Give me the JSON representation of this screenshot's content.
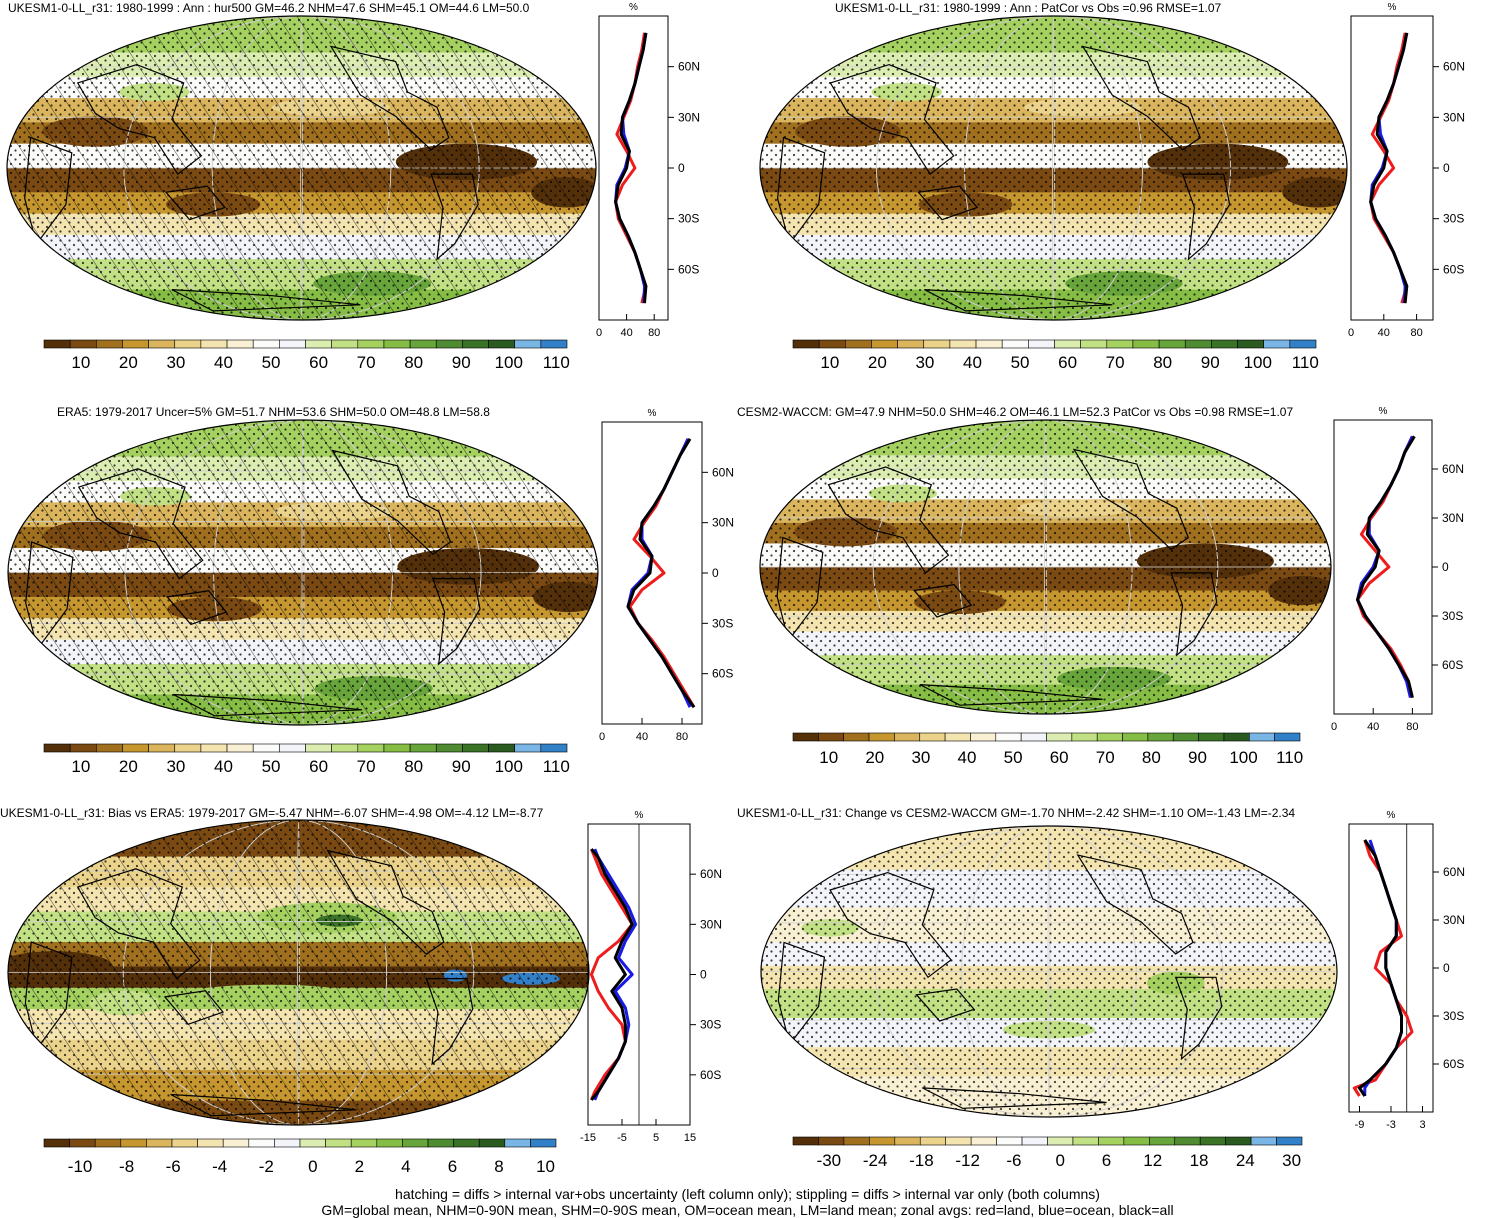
{
  "figure": {
    "footer_line1": "hatching = diffs > internal var+obs uncertainty (left column only); stippling = diffs > internal var only (both columns)",
    "footer_line2": "GM=global mean, NHM=0-90N mean, SHM=0-90S mean, OM=ocean mean, LM=land mean; zonal avgs: red=land, blue=ocean, black=all"
  },
  "colors": {
    "abs_scale": [
      "#54300a",
      "#7a4a12",
      "#a0701f",
      "#c6962f",
      "#dab55d",
      "#ebd38c",
      "#f4e5b0",
      "#f9f0d3",
      "#fbfbf9",
      "#f2f4f9",
      "#dcedb2",
      "#c2e084",
      "#a5d160",
      "#86bd45",
      "#68a53a",
      "#4f8b31",
      "#3a7226",
      "#2a5a1f",
      "#79b6e6",
      "#3180c8"
    ],
    "diff_scale": [
      "#54300a",
      "#7a4a12",
      "#a0701f",
      "#c6962f",
      "#dab55d",
      "#ebd38c",
      "#f4e5b0",
      "#f9f0d3",
      "#fbfbf9",
      "#f2f4f9",
      "#dcedb2",
      "#c2e084",
      "#a5d160",
      "#86bd45",
      "#68a53a",
      "#4f8b31",
      "#3a7226",
      "#2a5a1f",
      "#79b6e6",
      "#3180c8"
    ],
    "land": "#ee1c1c",
    "ocean": "#1a1ae6",
    "all": "#000000"
  },
  "chart_data": [
    {
      "type": "heatmap",
      "panel": "ukesm-mean",
      "title": "UKESM1-0-LL_r31: 1980-1999 : Ann : hur500 GM=46.2 NHM=47.6 SHM=45.1 OM=44.6 LM=50.0",
      "colorbar_ticks": [
        "10",
        "20",
        "30",
        "40",
        "50",
        "60",
        "70",
        "80",
        "90",
        "100",
        "110"
      ],
      "zonal": {
        "unit": "%",
        "xticks": [
          "0",
          "40",
          "80"
        ],
        "xlim": [
          0,
          100
        ],
        "yticks": [
          "60N",
          "30N",
          "0",
          "30S",
          "60S"
        ],
        "ylim": [
          -90,
          90
        ],
        "latitudes": [
          -80,
          -70,
          -60,
          -50,
          -40,
          -30,
          -20,
          -10,
          0,
          10,
          20,
          30,
          40,
          50,
          60,
          70,
          80
        ],
        "land": [
          62,
          68,
          60,
          52,
          40,
          28,
          24,
          34,
          52,
          40,
          26,
          36,
          46,
          52,
          56,
          62,
          66
        ],
        "ocean": [
          65,
          66,
          60,
          52,
          42,
          30,
          24,
          26,
          38,
          44,
          36,
          34,
          44,
          52,
          58,
          64,
          68
        ],
        "all": [
          66,
          68,
          60,
          52,
          42,
          30,
          24,
          28,
          40,
          44,
          32,
          34,
          44,
          52,
          58,
          64,
          68
        ]
      }
    },
    {
      "type": "heatmap",
      "panel": "ukesm-patcor",
      "title": "UKESM1-0-LL_r31: 1980-1999 : Ann : PatCor vs Obs =0.96 RMSE=1.07",
      "colorbar_ticks": [
        "10",
        "20",
        "30",
        "40",
        "50",
        "60",
        "70",
        "80",
        "90",
        "100",
        "110"
      ],
      "zonal": {
        "unit": "%",
        "xticks": [
          "0",
          "40",
          "80"
        ],
        "xlim": [
          0,
          100
        ],
        "yticks": [
          "60N",
          "30N",
          "0",
          "30S",
          "60S"
        ],
        "ylim": [
          -90,
          90
        ],
        "latitudes": [
          -80,
          -70,
          -60,
          -50,
          -40,
          -30,
          -20,
          -10,
          0,
          10,
          20,
          30,
          40,
          50,
          60,
          70,
          80
        ],
        "land": [
          62,
          68,
          60,
          52,
          40,
          28,
          24,
          34,
          52,
          40,
          26,
          36,
          46,
          52,
          56,
          62,
          66
        ],
        "ocean": [
          65,
          66,
          60,
          52,
          42,
          30,
          24,
          26,
          38,
          44,
          36,
          34,
          44,
          52,
          58,
          64,
          68
        ],
        "all": [
          66,
          68,
          60,
          52,
          42,
          30,
          24,
          28,
          40,
          44,
          32,
          34,
          44,
          52,
          58,
          64,
          68
        ]
      }
    },
    {
      "type": "heatmap",
      "panel": "era5",
      "title": "ERA5: 1979-2017 Uncer=5% GM=51.7 NHM=53.6 SHM=50.0 OM=48.8 LM=58.8",
      "colorbar_ticks": [
        "10",
        "20",
        "30",
        "40",
        "50",
        "60",
        "70",
        "80",
        "90",
        "100",
        "110"
      ],
      "zonal": {
        "unit": "%",
        "xticks": [
          "0",
          "40",
          "80"
        ],
        "xlim": [
          0,
          100
        ],
        "yticks": [
          "60N",
          "30N",
          "0",
          "30S",
          "60S"
        ],
        "ylim": [
          -90,
          90
        ],
        "latitudes": [
          -80,
          -70,
          -60,
          -50,
          -40,
          -30,
          -20,
          -10,
          0,
          10,
          20,
          30,
          40,
          50,
          60,
          70,
          80
        ],
        "land": [
          92,
          82,
          72,
          62,
          50,
          36,
          28,
          40,
          62,
          48,
          32,
          42,
          54,
          62,
          70,
          78,
          86
        ],
        "ocean": [
          88,
          80,
          70,
          60,
          48,
          36,
          26,
          30,
          46,
          50,
          40,
          40,
          52,
          62,
          70,
          78,
          86
        ],
        "all": [
          92,
          80,
          70,
          60,
          48,
          36,
          26,
          32,
          48,
          50,
          38,
          40,
          52,
          62,
          70,
          78,
          88
        ]
      }
    },
    {
      "type": "heatmap",
      "panel": "cesm2",
      "title": "CESM2-WACCM: GM=47.9 NHM=50.0 SHM=46.2 OM=46.1 LM=52.3 PatCor vs Obs =0.98 RMSE=1.07",
      "colorbar_ticks": [
        "10",
        "20",
        "30",
        "40",
        "50",
        "60",
        "70",
        "80",
        "90",
        "100",
        "110"
      ],
      "zonal": {
        "unit": "%",
        "xticks": [
          "0",
          "40",
          "80"
        ],
        "xlim": [
          0,
          100
        ],
        "yticks": [
          "60N",
          "30N",
          "0",
          "30S",
          "60S"
        ],
        "ylim": [
          -90,
          90
        ],
        "latitudes": [
          -80,
          -70,
          -60,
          -50,
          -40,
          -30,
          -20,
          -10,
          0,
          10,
          20,
          30,
          40,
          50,
          60,
          70,
          80
        ],
        "land": [
          80,
          76,
          68,
          58,
          44,
          30,
          24,
          36,
          56,
          42,
          28,
          38,
          50,
          58,
          66,
          72,
          80
        ],
        "ocean": [
          78,
          74,
          66,
          56,
          44,
          32,
          24,
          28,
          40,
          46,
          36,
          36,
          48,
          58,
          66,
          72,
          80
        ],
        "all": [
          80,
          76,
          66,
          56,
          44,
          32,
          24,
          30,
          42,
          46,
          34,
          36,
          48,
          58,
          66,
          72,
          82
        ]
      }
    },
    {
      "type": "heatmap",
      "panel": "bias",
      "title": "UKESM1-0-LL_r31: Bias vs ERA5: 1979-2017 GM=-5.47 NHM=-6.07 SHM=-4.98 OM=-4.12 LM=-8.77",
      "colorbar_ticks": [
        "-10",
        "-8",
        "-6",
        "-4",
        "-2",
        "0",
        "2",
        "4",
        "6",
        "8",
        "10"
      ],
      "zonal": {
        "unit": "%",
        "xticks": [
          "-15",
          "-5",
          "5",
          "15"
        ],
        "xlim": [
          -15,
          15
        ],
        "yticks": [
          "60N",
          "30N",
          "0",
          "30S",
          "60S"
        ],
        "ylim": [
          -90,
          90
        ],
        "latitudes": [
          -75,
          -70,
          -60,
          -50,
          -40,
          -30,
          -20,
          -10,
          0,
          10,
          20,
          30,
          40,
          50,
          60,
          70,
          75
        ],
        "land": [
          -14,
          -13,
          -10,
          -6,
          -4,
          -5,
          -9,
          -12,
          -14,
          -12,
          -6,
          -2,
          -5,
          -8,
          -11,
          -13,
          -14
        ],
        "ocean": [
          -13,
          -12,
          -9,
          -6,
          -4,
          -3,
          -4,
          -7,
          -2,
          -6,
          -4,
          -1,
          -3,
          -6,
          -9,
          -12,
          -13
        ],
        "all": [
          -14,
          -12,
          -9,
          -6,
          -4,
          -4,
          -5,
          -8,
          -4,
          -7,
          -5,
          -2,
          -4,
          -7,
          -10,
          -12,
          -14
        ]
      }
    },
    {
      "type": "heatmap",
      "panel": "change",
      "title": "UKESM1-0-LL_r31: Change vs CESM2-WACCM GM=-1.70 NHM=-2.42 SHM=-1.10 OM=-1.43 LM=-2.34",
      "colorbar_ticks": [
        "-30",
        "-24",
        "-18",
        "-12",
        "-6",
        "0",
        "6",
        "12",
        "18",
        "24",
        "30"
      ],
      "zonal": {
        "unit": "%",
        "xticks": [
          "-9",
          "-3",
          "3"
        ],
        "xlim": [
          -11,
          5
        ],
        "yticks": [
          "60N",
          "30N",
          "0",
          "30S",
          "60S"
        ],
        "ylim": [
          -90,
          90
        ],
        "latitudes": [
          -80,
          -75,
          -70,
          -60,
          -50,
          -40,
          -30,
          -20,
          -10,
          0,
          10,
          20,
          30,
          40,
          50,
          60,
          70,
          80
        ],
        "land": [
          -9,
          -10,
          -6,
          -4,
          -2,
          1,
          0,
          -2,
          -3,
          -6,
          -5,
          -1,
          -2,
          -3,
          -4,
          -5,
          -7,
          -8
        ],
        "ocean": [
          -8,
          -8,
          -7,
          -4,
          -2,
          -1,
          -1,
          -2,
          -3,
          -4,
          -4,
          -2,
          -2,
          -3,
          -4,
          -5,
          -6,
          -7
        ],
        "all": [
          -8,
          -9,
          -7,
          -4,
          -2,
          -1,
          -1,
          -2,
          -3,
          -4,
          -4,
          -2,
          -2,
          -3,
          -4,
          -5,
          -6,
          -8
        ]
      }
    }
  ]
}
